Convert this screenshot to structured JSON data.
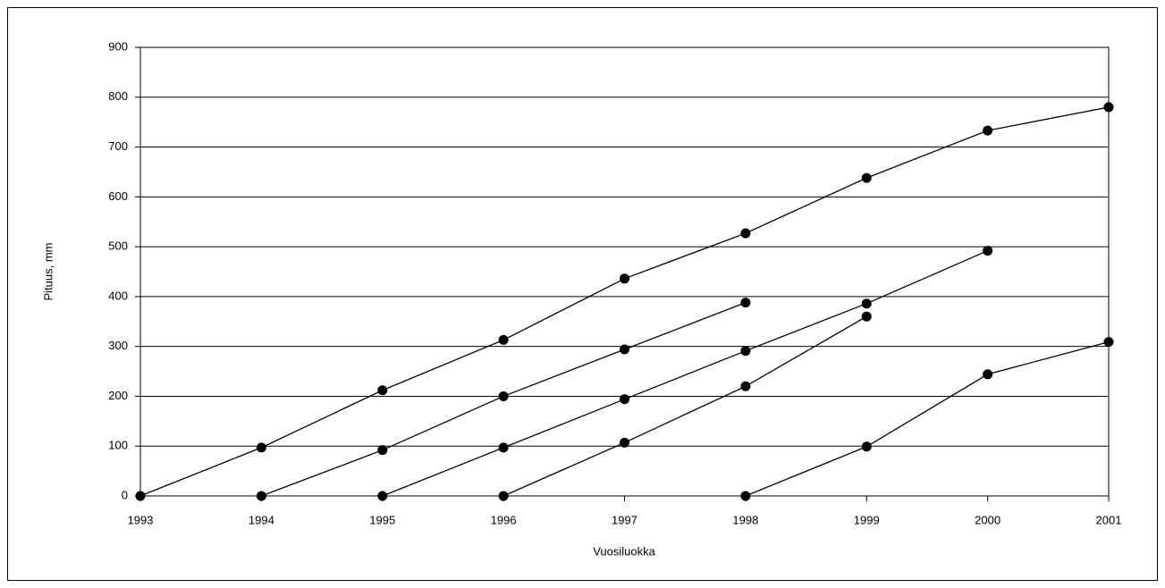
{
  "chart_data": {
    "type": "line",
    "xlabel": "Vuosiluokka",
    "ylabel": "Pituus, mm",
    "x": [
      1993,
      1994,
      1995,
      1996,
      1997,
      1998,
      1999,
      2000,
      2001
    ],
    "series": [
      {
        "color": "#000000",
        "values": [
          0,
          97,
          212,
          313,
          436,
          527,
          638,
          733,
          780
        ]
      },
      {
        "color": "#000000",
        "values": [
          null,
          0,
          92,
          200,
          294,
          388,
          null,
          null,
          null
        ]
      },
      {
        "color": "#000000",
        "values": [
          null,
          null,
          0,
          97,
          194,
          291,
          386,
          492,
          null
        ]
      },
      {
        "color": "#000000",
        "values": [
          null,
          null,
          null,
          0,
          107,
          220,
          360,
          null,
          null
        ]
      },
      {
        "color": "#000000",
        "values": [
          null,
          null,
          null,
          null,
          null,
          0,
          99,
          244,
          309
        ]
      }
    ],
    "xlim": [
      1993,
      2001
    ],
    "xticks": [
      1993,
      1994,
      1995,
      1996,
      1997,
      1998,
      1999,
      2000,
      2001
    ],
    "ylim": [
      0,
      900
    ],
    "yticks": [
      0,
      100,
      200,
      300,
      400,
      500,
      600,
      700,
      800,
      900
    ],
    "grid": true
  }
}
